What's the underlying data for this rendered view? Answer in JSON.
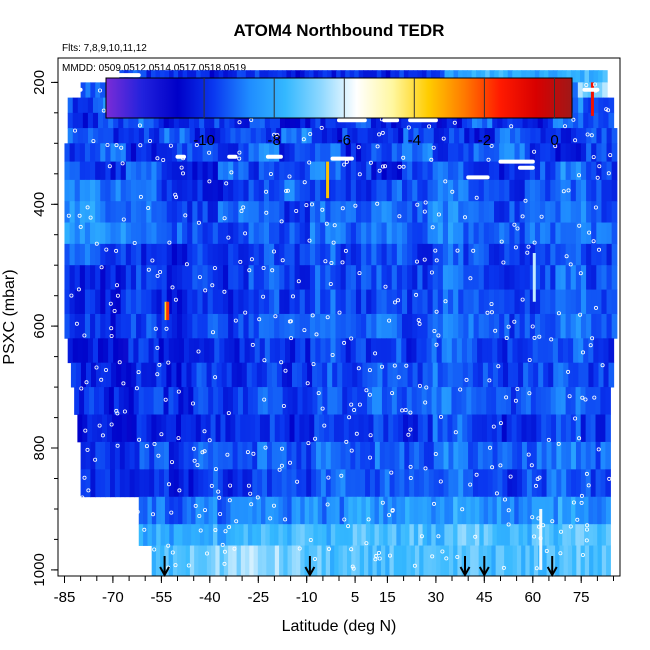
{
  "chart_data": {
    "type": "heatmap",
    "title": "ATOM4 Northbound TEDR",
    "annotations": [
      "Flts: 7,8,9,10,11,12",
      "MMDD: 0509,0512,0514,0517,0518,0519"
    ],
    "xlabel": "Latitude (deg N)",
    "ylabel": "PSXC (mbar)",
    "xlim": [
      -87,
      87
    ],
    "ylim": [
      1010,
      160
    ],
    "x_ticks": [
      -85,
      -70,
      -55,
      -40,
      -25,
      -10,
      5,
      15,
      30,
      45,
      60,
      75
    ],
    "x_tick_labels": [
      "-85",
      "-70",
      "-55",
      "-40",
      "-25",
      "-10",
      "5",
      "15",
      "30",
      "45",
      "60",
      "75"
    ],
    "y_ticks": [
      200,
      400,
      600,
      800,
      1000
    ],
    "y_tick_labels": [
      "200",
      "400",
      "600",
      "800",
      "1000"
    ],
    "colorbar": {
      "range": [
        -12.8,
        0.5
      ],
      "ticks": [
        -10,
        -8,
        -6,
        -4,
        -2,
        0
      ],
      "tick_labels": [
        "-10",
        "-8",
        "-6",
        "-4",
        "-2",
        "0"
      ],
      "palette": [
        "#7b2cd6",
        "#2222dd",
        "#0000c8",
        "#0a38f0",
        "#1f8cff",
        "#34b8ff",
        "#8fd8ff",
        "#ffffff",
        "#fff7a0",
        "#ffcc00",
        "#ff7a00",
        "#ff1a00",
        "#d80000",
        "#a01818"
      ]
    },
    "arrow_latitudes": [
      -54,
      -9,
      39,
      45,
      66
    ],
    "series": [
      {
        "name": "",
        "rows": [
          {
            "p_top": 180,
            "p_bot": 200,
            "lat_min": -68,
            "lat_max": 83,
            "values": [
              -9.6,
              -10.0,
              -9.9,
              -10.3,
              -10.0,
              -9.7,
              -10.4,
              -10.1,
              -9.8,
              -10.2,
              -9.6,
              -9.9,
              -8.2,
              -7.8,
              -7.9,
              -8.3,
              -8.0,
              -7.7
            ]
          },
          {
            "p_top": 200,
            "p_bot": 225,
            "lat_min": -80,
            "lat_max": 83,
            "values": [
              -9.3,
              -10.1,
              -9.8,
              -10.4,
              -10.0,
              -9.6,
              -9.9,
              -10.2,
              -9.7,
              -10.0,
              -9.5,
              -8.6,
              -8.9,
              -7.9,
              -8.1,
              -8.4,
              -9.0,
              -6.8
            ]
          },
          {
            "p_top": 225,
            "p_bot": 250,
            "lat_min": -84,
            "lat_max": 85,
            "values": [
              -9.7,
              -8.9,
              -10.0,
              -9.4,
              -10.6,
              -9.8,
              -10.3,
              -9.9,
              -10.1,
              -9.2,
              -9.8,
              -10.4,
              -9.5,
              -9.0,
              -10.2,
              -9.7,
              -8.8,
              -10.0
            ]
          },
          {
            "p_top": 250,
            "p_bot": 275,
            "lat_min": -84,
            "lat_max": 85,
            "values": [
              -10.2,
              -9.5,
              -9.1,
              -10.6,
              -9.6,
              -10.0,
              -9.3,
              -10.4,
              -9.9,
              -9.4,
              -10.1,
              -9.7,
              -10.5,
              -9.2,
              -9.8,
              -10.3,
              -9.0,
              -9.6
            ]
          },
          {
            "p_top": 275,
            "p_bot": 300,
            "lat_min": -84,
            "lat_max": 86,
            "values": [
              -9.4,
              -10.0,
              -9.7,
              -9.0,
              -10.2,
              -9.5,
              -9.9,
              -8.8,
              -10.3,
              -9.6,
              -10.0,
              -9.2,
              -9.8,
              -10.4,
              -9.1,
              -9.7,
              -10.1,
              -9.5
            ]
          },
          {
            "p_top": 300,
            "p_bot": 330,
            "lat_min": -85,
            "lat_max": 86,
            "values": [
              -9.8,
              -9.2,
              -10.3,
              -9.7,
              -9.4,
              -10.0,
              -8.7,
              -9.9,
              -9.3,
              -10.2,
              -9.6,
              -9.0,
              -10.1,
              -9.4,
              -8.9,
              -9.8,
              -10.2,
              -9.6
            ]
          },
          {
            "p_top": 330,
            "p_bot": 360,
            "lat_min": -85,
            "lat_max": 86,
            "values": [
              -9.5,
              -10.1,
              -9.3,
              -9.8,
              -10.4,
              -9.1,
              -9.7,
              -10.0,
              -8.8,
              -9.6,
              -10.3,
              -9.4,
              -9.0,
              -9.9,
              -10.2,
              -9.5,
              -8.6,
              -9.8
            ]
          },
          {
            "p_top": 360,
            "p_bot": 395,
            "lat_min": -85,
            "lat_max": 86,
            "values": [
              -8.6,
              -8.9,
              -9.2,
              -9.6,
              -9.9,
              -10.1,
              -9.4,
              -9.0,
              -9.7,
              -10.0,
              -9.3,
              -9.6,
              -8.8,
              -9.2,
              -9.9,
              -9.5,
              -9.1,
              -9.7
            ]
          },
          {
            "p_top": 395,
            "p_bot": 430,
            "lat_min": -85,
            "lat_max": 86,
            "values": [
              -8.4,
              -8.8,
              -9.0,
              -9.4,
              -9.7,
              -9.2,
              -9.5,
              -9.8,
              -9.1,
              -9.4,
              -9.0,
              -9.3,
              -8.7,
              -9.1,
              -9.6,
              -9.2,
              -8.9,
              -9.4
            ]
          },
          {
            "p_top": 430,
            "p_bot": 465,
            "lat_min": -85,
            "lat_max": 86,
            "values": [
              -8.3,
              -8.6,
              -9.1,
              -9.3,
              -9.6,
              -9.9,
              -9.2,
              -9.5,
              -9.0,
              -9.3,
              -8.9,
              -9.2,
              -8.6,
              -9.0,
              -9.4,
              -9.1,
              -8.8,
              -9.3
            ]
          },
          {
            "p_top": 465,
            "p_bot": 500,
            "lat_min": -85,
            "lat_max": 86,
            "values": [
              -9.2,
              -9.6,
              -9.9,
              -10.2,
              -9.8,
              -10.1,
              -9.5,
              -9.9,
              -9.3,
              -9.7,
              -9.4,
              -9.8,
              -9.1,
              -9.5,
              -9.9,
              -9.6,
              -9.2,
              -9.7
            ]
          },
          {
            "p_top": 500,
            "p_bot": 540,
            "lat_min": -85,
            "lat_max": 86,
            "values": [
              -10.0,
              -10.3,
              -9.7,
              -10.1,
              -9.6,
              -10.0,
              -9.4,
              -9.8,
              -9.2,
              -9.6,
              -9.3,
              -9.7,
              -9.0,
              -9.4,
              -9.8,
              -9.5,
              -9.1,
              -9.6
            ]
          },
          {
            "p_top": 540,
            "p_bot": 580,
            "lat_min": -85,
            "lat_max": 86,
            "values": [
              -10.1,
              -10.4,
              -9.9,
              -10.2,
              -9.7,
              -10.0,
              -9.5,
              -9.9,
              -9.3,
              -9.7,
              -9.4,
              -9.8,
              -9.1,
              -9.5,
              -9.9,
              -9.6,
              -9.2,
              -9.7
            ]
          },
          {
            "p_top": 580,
            "p_bot": 620,
            "lat_min": -85,
            "lat_max": 86,
            "values": [
              -9.8,
              -10.1,
              -9.6,
              -9.9,
              -9.4,
              -9.8,
              -9.2,
              -9.6,
              -9.0,
              -9.4,
              -9.1,
              -9.5,
              -8.8,
              -9.2,
              -9.6,
              -9.3,
              -8.9,
              -9.4
            ]
          },
          {
            "p_top": 620,
            "p_bot": 660,
            "lat_min": -84,
            "lat_max": 85,
            "values": [
              -10.2,
              -10.5,
              -10.0,
              -10.3,
              -9.8,
              -10.1,
              -9.6,
              -10.0,
              -9.4,
              -9.8,
              -9.5,
              -9.9,
              -9.2,
              -9.6,
              -10.0,
              -9.7,
              -9.3,
              -9.8
            ]
          },
          {
            "p_top": 660,
            "p_bot": 700,
            "lat_min": -83,
            "lat_max": 85,
            "values": [
              -10.1,
              -10.4,
              -9.9,
              -10.2,
              -9.7,
              -10.0,
              -9.5,
              -9.9,
              -9.3,
              -9.7,
              -9.4,
              -9.8,
              -9.1,
              -9.5,
              -9.9,
              -9.6,
              -9.2,
              -9.7
            ]
          },
          {
            "p_top": 700,
            "p_bot": 745,
            "lat_min": -82,
            "lat_max": 84,
            "values": [
              -9.9,
              -10.2,
              -9.7,
              -10.0,
              -9.5,
              -9.8,
              -9.3,
              -9.7,
              -9.1,
              -9.5,
              -9.2,
              -9.6,
              -8.9,
              -9.3,
              -9.7,
              -9.4,
              -9.0,
              -9.5
            ]
          },
          {
            "p_top": 745,
            "p_bot": 790,
            "lat_min": -81,
            "lat_max": 84,
            "values": [
              -10.3,
              -10.6,
              -10.1,
              -10.4,
              -9.9,
              -10.2,
              -9.7,
              -10.1,
              -9.5,
              -9.9,
              -9.6,
              -10.0,
              -9.3,
              -9.7,
              -10.1,
              -9.8,
              -9.4,
              -9.9
            ]
          },
          {
            "p_top": 790,
            "p_bot": 835,
            "lat_min": -80,
            "lat_max": 84,
            "values": [
              -9.7,
              -10.0,
              -9.5,
              -9.8,
              -9.3,
              -9.6,
              -9.1,
              -9.5,
              -8.9,
              -9.3,
              -9.0,
              -9.4,
              -8.7,
              -9.1,
              -9.5,
              -9.2,
              -8.8,
              -9.3
            ]
          },
          {
            "p_top": 835,
            "p_bot": 880,
            "lat_min": -80,
            "lat_max": 84,
            "values": [
              -10.0,
              -10.3,
              -9.8,
              -10.1,
              -9.6,
              -9.9,
              -9.4,
              -9.8,
              -9.2,
              -9.6,
              -9.3,
              -9.7,
              -9.0,
              -9.4,
              -9.8,
              -9.5,
              -9.1,
              -9.6
            ]
          },
          {
            "p_top": 880,
            "p_bot": 925,
            "lat_min": -62,
            "lat_max": 84,
            "values": [
              -9.0,
              -9.3,
              -8.8,
              -9.1,
              -8.6,
              -8.9,
              -8.4,
              -8.8,
              -8.2,
              -8.6,
              -8.3,
              -8.7,
              -8.0,
              -8.4,
              -8.8,
              -8.5,
              -8.1,
              -8.6
            ]
          },
          {
            "p_top": 925,
            "p_bot": 960,
            "lat_min": -62,
            "lat_max": 84,
            "values": [
              -8.0,
              -8.3,
              -7.8,
              -8.1,
              -7.6,
              -7.9,
              -7.4,
              -7.8,
              -7.2,
              -7.6,
              -7.3,
              -7.7,
              -7.0,
              -7.4,
              -7.8,
              -7.5,
              -7.1,
              -7.6
            ]
          },
          {
            "p_top": 960,
            "p_bot": 1010,
            "lat_min": -58,
            "lat_max": 84,
            "values": [
              -7.6,
              -7.2,
              -6.9,
              -6.5,
              -6.7,
              -7.0,
              -7.3,
              -7.5,
              -7.7,
              -7.4,
              -7.6,
              -7.8,
              -7.3,
              -7.5,
              -7.7,
              -7.4,
              -7.2,
              -7.5
            ]
          }
        ]
      }
    ]
  }
}
